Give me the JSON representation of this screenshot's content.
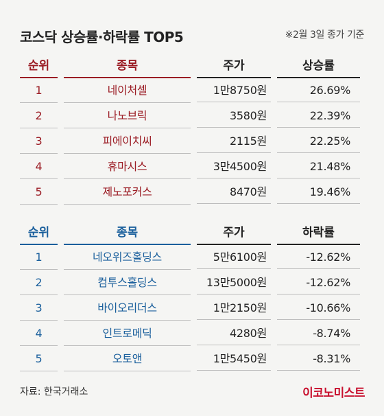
{
  "title": "코스닥 상승률·하락률 TOP5",
  "note": "※2월 3일 종가 기준",
  "gainers": {
    "headers": {
      "rank": "순위",
      "name": "종목",
      "price": "주가",
      "rate": "상승률"
    },
    "rows": [
      {
        "rank": "1",
        "name": "네이처셀",
        "price": "1만8750원",
        "rate": "26.69%"
      },
      {
        "rank": "2",
        "name": "나노브릭",
        "price": "3580원",
        "rate": "22.39%"
      },
      {
        "rank": "3",
        "name": "피에이치씨",
        "price": "2115원",
        "rate": "22.25%"
      },
      {
        "rank": "4",
        "name": "휴마시스",
        "price": "3만4500원",
        "rate": "21.48%"
      },
      {
        "rank": "5",
        "name": "제노포커스",
        "price": "8470원",
        "rate": "19.46%"
      }
    ]
  },
  "losers": {
    "headers": {
      "rank": "순위",
      "name": "종목",
      "price": "주가",
      "rate": "하락률"
    },
    "rows": [
      {
        "rank": "1",
        "name": "네오위즈홀딩스",
        "price": "5만6100원",
        "rate": "-12.62%"
      },
      {
        "rank": "2",
        "name": "컴투스홀딩스",
        "price": "13만5000원",
        "rate": "-12.62%"
      },
      {
        "rank": "3",
        "name": "바이오리더스",
        "price": "1만2150원",
        "rate": "-10.66%"
      },
      {
        "rank": "4",
        "name": "인트로메딕",
        "price": "4280원",
        "rate": "-8.74%"
      },
      {
        "rank": "5",
        "name": "오토앤",
        "price": "1만5450원",
        "rate": "-8.31%"
      }
    ]
  },
  "source": "자료: 한국거래소",
  "logo": "이코노미스트",
  "colors": {
    "gain": "#9b1c24",
    "loss": "#1a5f9c",
    "logo": "#c8102e"
  }
}
